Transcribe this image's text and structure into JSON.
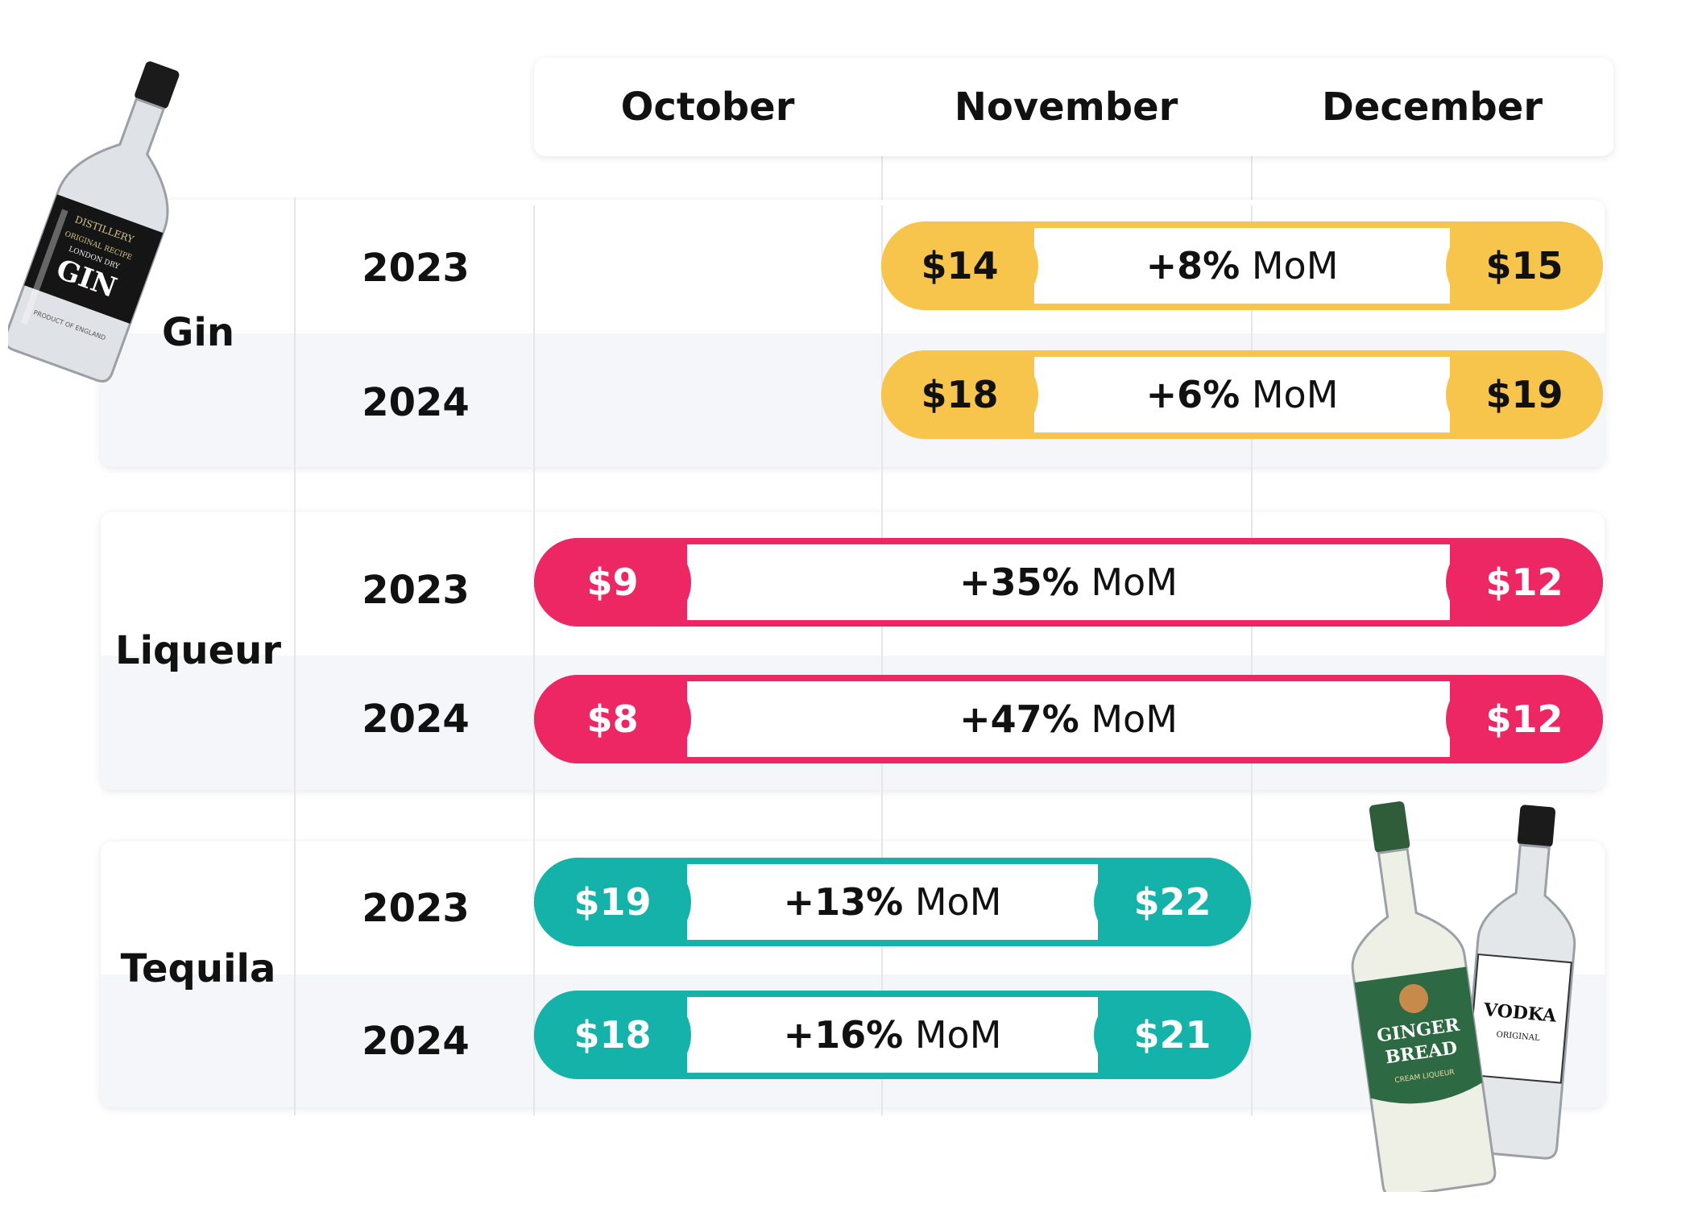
{
  "columns": [
    "October",
    "November",
    "December"
  ],
  "colors": {
    "gin": "#f7c54b",
    "liqueur": "#ec2764",
    "tequila": "#14b2a8"
  },
  "groups": [
    {
      "name": "Gin",
      "rows": [
        {
          "year": "2023",
          "start_month": "November",
          "end_month": "December",
          "start": "$14",
          "end": "$15",
          "change": "+8%",
          "unit": "MoM"
        },
        {
          "year": "2024",
          "start_month": "November",
          "end_month": "December",
          "start": "$18",
          "end": "$19",
          "change": "+6%",
          "unit": "MoM"
        }
      ]
    },
    {
      "name": "Liqueur",
      "rows": [
        {
          "year": "2023",
          "start_month": "October",
          "end_month": "December",
          "start": "$9",
          "end": "$12",
          "change": "+35%",
          "unit": "MoM"
        },
        {
          "year": "2024",
          "start_month": "October",
          "end_month": "December",
          "start": "$8",
          "end": "$12",
          "change": "+47%",
          "unit": "MoM"
        }
      ]
    },
    {
      "name": "Tequila",
      "rows": [
        {
          "year": "2023",
          "start_month": "October",
          "end_month": "November",
          "start": "$19",
          "end": "$22",
          "change": "+13%",
          "unit": "MoM"
        },
        {
          "year": "2024",
          "start_month": "October",
          "end_month": "November",
          "start": "$18",
          "end": "$21",
          "change": "+16%",
          "unit": "MoM"
        }
      ]
    }
  ],
  "chart_data": {
    "type": "table",
    "columns": [
      "October",
      "November",
      "December"
    ],
    "series": [
      {
        "name": "Gin",
        "values": [
          {
            "year": "2023",
            "from": 14,
            "to": 15,
            "change_pct": 8
          },
          {
            "year": "2024",
            "from": 18,
            "to": 19,
            "change_pct": 6
          }
        ]
      },
      {
        "name": "Liqueur",
        "values": [
          {
            "year": "2023",
            "from": 9,
            "to": 12,
            "change_pct": 35
          },
          {
            "year": "2024",
            "from": 8,
            "to": 12,
            "change_pct": 47
          }
        ]
      },
      {
        "name": "Tequila",
        "values": [
          {
            "year": "2023",
            "from": 19,
            "to": 22,
            "change_pct": 13
          },
          {
            "year": "2024",
            "from": 18,
            "to": 21,
            "change_pct": 16
          }
        ]
      }
    ]
  },
  "decorations": {
    "gin_bottle_label": [
      "DISTILLERY",
      "ORIGINAL RECIPE",
      "LONDON DRY",
      "GIN",
      "PRODUCT OF ENGLAND"
    ],
    "gingerbread_label": [
      "GINGER",
      "BREAD",
      "CREAM LIQUEUR"
    ],
    "vodka_label": [
      "VODKA",
      "ORIGINAL"
    ]
  }
}
